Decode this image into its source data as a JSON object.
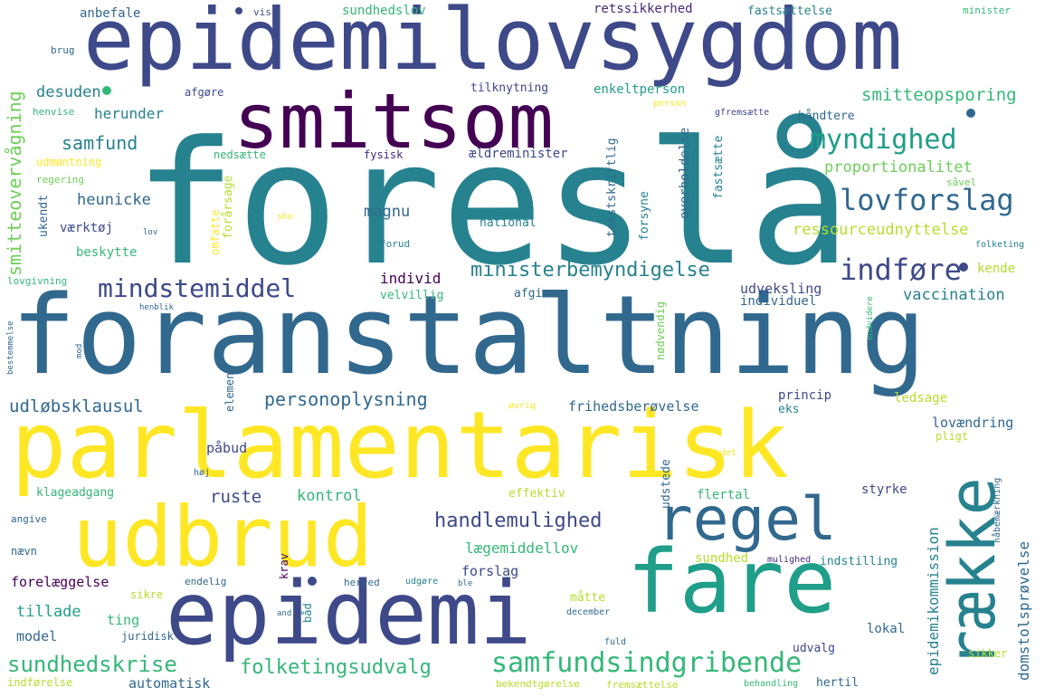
{
  "palette": {
    "yellow": "#fde725",
    "lime": "#b5de2b",
    "green": "#6ece58",
    "sea": "#35b779",
    "teal": "#1f9e89",
    "cyan": "#26828e",
    "blue": "#31688e",
    "indigo": "#3e4989",
    "violet": "#482878",
    "purple": "#440154"
  },
  "words": [
    "foreslå",
    "foranstaltning",
    "parlamentarisk",
    "epidemilovsygdom",
    "smitsom",
    "udbrud",
    "epidemi",
    "fare",
    "regel",
    "række",
    "samfundsindgribende",
    "lovforslag",
    "myndighed",
    "indføre",
    "mindstemiddel",
    "folketingsudvalg",
    "sundhedskrise",
    "handlemulighed",
    "ministerbemyndigelse",
    "personoplysning",
    "smitteovervågning",
    "smitteopsporing",
    "udløbsklausul",
    "samfund",
    "ressourceudnyttelse",
    "vaccination",
    "proportionalitet",
    "epidemikommission",
    "domstolsprøvelse",
    "lægemiddellov",
    "frihedsberøvelse",
    "ruste",
    "magnu",
    "heunicke",
    "desuden",
    "herunder",
    "kontrol",
    "individ",
    "tillade",
    "forelæggelse",
    "model",
    "automatisk",
    "påbud",
    "lovændring",
    "ting",
    "udveksling",
    "styrke",
    "flertal",
    "sundhed",
    "forslag",
    "kende",
    "princip",
    "ledsage",
    "eks",
    "lokal",
    "udvalg",
    "indstilling",
    "værktøj",
    "ukendt",
    "beskytte",
    "anbefale",
    "sundhedslov",
    "retssikkerhed",
    "fastsættelse",
    "minister",
    "vis",
    "brug",
    "afgøre",
    "tilknytning",
    "enkeltperson",
    "henvise",
    "udmøntning",
    "regering",
    "nedsætte",
    "fysisk",
    "ældreminister",
    "tekstskriftlig",
    "overholdelse",
    "fastsætte",
    "håndtere",
    "forsyne",
    "omfatte",
    "forårsage",
    "national",
    "forud",
    "afgive",
    "velvillig",
    "individuel",
    "nødvendig",
    "element",
    "udstede",
    "effektiv",
    "klageadgang",
    "angive",
    "nævn",
    "endelig",
    "herved",
    "udgøre",
    "krav",
    "måtte",
    "båd",
    "sikre",
    "juridisk",
    "december",
    "fuld",
    "hertil",
    "indførelse",
    "bekendtgørelse",
    "fremsættelse",
    "behandling",
    "sikker",
    "nøgle",
    "mulighed",
    "nåbemærkning",
    "person",
    "gfremsætte",
    "sko",
    "lov",
    "folketing",
    "lovgivning",
    "henblik",
    "bestemmelse",
    "mod",
    "endvidere",
    "øvrig",
    "idet",
    "pligt",
    "høj",
    "and",
    "ble",
    "såvel"
  ]
}
